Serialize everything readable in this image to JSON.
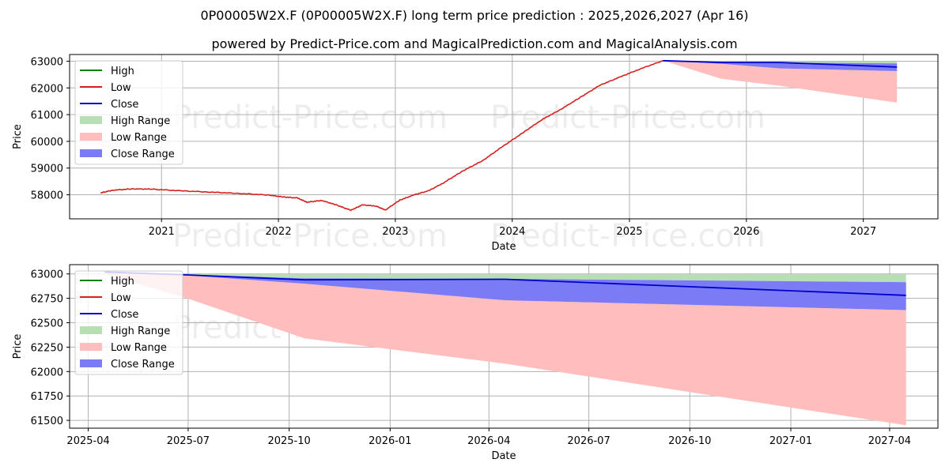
{
  "titles": {
    "main": "0P00005W2X.F (0P00005W2X.F) long term price prediction : 2025,2026,2027 (Apr 16)",
    "sub": "powered by Predict-Price.com and MagicalPrediction.com and MagicalAnalysis.com"
  },
  "watermark": "Predict-Price.com",
  "colors": {
    "high": "#008000",
    "low": "#d62020",
    "close": "#0000cc",
    "high_range": "#b8dfb4",
    "low_range": "#ffbdbd",
    "close_range": "#7b7bf5",
    "grid": "#b0b0b0"
  },
  "chart_data": [
    {
      "type": "line",
      "id": "top",
      "xlabel": "Date",
      "ylabel": "Price",
      "x_ticks": [
        "2021",
        "2022",
        "2023",
        "2024",
        "2025",
        "2026",
        "2027"
      ],
      "y_ticks": [
        58000,
        59000,
        60000,
        61000,
        62000,
        63000
      ],
      "xlim": [
        "2020-03-20",
        "2027-08-22"
      ],
      "ylim": [
        57100,
        63250
      ],
      "grid": true,
      "legend": {
        "placement": "top-left",
        "entries": [
          "High",
          "Low",
          "Close",
          "High Range",
          "Low Range",
          "Close Range"
        ]
      },
      "history": [
        [
          "2020-06-25",
          58070
        ],
        [
          "2020-08-01",
          58170
        ],
        [
          "2020-10-01",
          58220
        ],
        [
          "2020-12-01",
          58210
        ],
        [
          "2021-03-01",
          58150
        ],
        [
          "2021-06-01",
          58100
        ],
        [
          "2021-09-01",
          58050
        ],
        [
          "2021-12-01",
          57990
        ],
        [
          "2022-01-15",
          57920
        ],
        [
          "2022-03-01",
          57880
        ],
        [
          "2022-04-01",
          57720
        ],
        [
          "2022-05-15",
          57790
        ],
        [
          "2022-07-01",
          57620
        ],
        [
          "2022-08-15",
          57420
        ],
        [
          "2022-09-20",
          57620
        ],
        [
          "2022-11-01",
          57580
        ],
        [
          "2022-12-01",
          57430
        ],
        [
          "2023-01-15",
          57800
        ],
        [
          "2023-03-01",
          58000
        ],
        [
          "2023-04-15",
          58150
        ],
        [
          "2023-06-01",
          58450
        ],
        [
          "2023-08-01",
          58900
        ],
        [
          "2023-10-01",
          59280
        ],
        [
          "2023-12-01",
          59800
        ],
        [
          "2024-02-01",
          60300
        ],
        [
          "2024-04-01",
          60800
        ],
        [
          "2024-06-01",
          61200
        ],
        [
          "2024-08-01",
          61650
        ],
        [
          "2024-10-01",
          62100
        ],
        [
          "2024-12-01",
          62400
        ],
        [
          "2025-02-01",
          62700
        ],
        [
          "2025-04-16",
          63020
        ]
      ],
      "forecast": [
        {
          "date": "2025-04-16",
          "close": 63020,
          "close_lo": 63020,
          "close_hi": 63020,
          "low_lo": 63020,
          "high_hi": 63020
        },
        {
          "date": "2025-10-15",
          "close": 62950,
          "close_lo": 62900,
          "close_hi": 62980,
          "low_lo": 62340,
          "high_hi": 62990
        },
        {
          "date": "2026-04-16",
          "close": 62950,
          "close_lo": 62730,
          "close_hi": 62950,
          "low_lo": 62080,
          "high_hi": 62990
        },
        {
          "date": "2027-04-16",
          "close": 62780,
          "close_lo": 62630,
          "close_hi": 62920,
          "low_lo": 61450,
          "high_hi": 62990
        }
      ]
    },
    {
      "type": "line",
      "id": "bottom",
      "xlabel": "Date",
      "ylabel": "Price",
      "x_ticks": [
        "2025-04",
        "2025-07",
        "2025-10",
        "2026-01",
        "2026-04",
        "2026-07",
        "2026-10",
        "2027-01",
        "2027-04"
      ],
      "y_ticks": [
        61500,
        61750,
        62000,
        62250,
        62500,
        62750,
        63000
      ],
      "xlim": [
        "2025-03-15",
        "2027-05-15"
      ],
      "ylim": [
        61420,
        63095
      ],
      "grid": true,
      "legend": {
        "placement": "top-left",
        "entries": [
          "High",
          "Low",
          "Close",
          "High Range",
          "Low Range",
          "Close Range"
        ]
      },
      "forecast": [
        {
          "date": "2025-04-16",
          "close": 63020,
          "close_lo": 63020,
          "close_hi": 63020,
          "low_lo": 63000,
          "high_hi": 63020
        },
        {
          "date": "2025-06-30",
          "close": 62990,
          "close_lo": 62985,
          "close_hi": 62995,
          "low_lo": 62750,
          "high_hi": 62998
        },
        {
          "date": "2025-10-15",
          "close": 62940,
          "close_lo": 62900,
          "close_hi": 62955,
          "low_lo": 62340,
          "high_hi": 62995
        },
        {
          "date": "2026-04-16",
          "close": 62945,
          "close_lo": 62730,
          "close_hi": 62950,
          "low_lo": 62080,
          "high_hi": 62995
        },
        {
          "date": "2027-04-16",
          "close": 62780,
          "close_lo": 62630,
          "close_hi": 62915,
          "low_lo": 61450,
          "high_hi": 62995
        }
      ]
    }
  ]
}
